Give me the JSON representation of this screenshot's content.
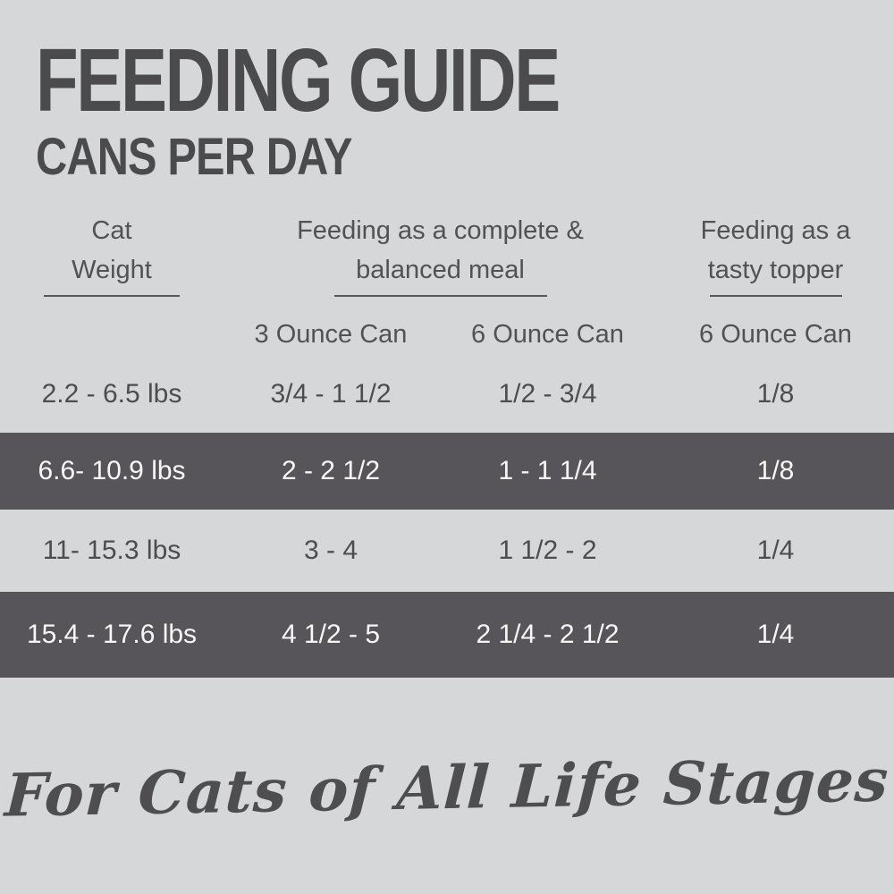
{
  "page": {
    "background_color": "#d6d7d8",
    "text_color": "#4c4c4e",
    "highlight_band_color": "#575559",
    "highlight_band_text_color": "#f7f7f6"
  },
  "header": {
    "title": "FEEDING GUIDE",
    "subtitle": "CANS PER DAY"
  },
  "table": {
    "column_groups": [
      {
        "line1": "Cat",
        "line2": "Weight"
      },
      {
        "line1": "Feeding as a complete &",
        "line2": "balanced meal"
      },
      {
        "line1": "Feeding as a",
        "line2": "tasty topper"
      }
    ],
    "sub_headers": [
      "3 Ounce Can",
      "6 Ounce Can",
      "6 Ounce Can"
    ],
    "rows": [
      {
        "weight": "2.2 - 6.5 lbs",
        "complete_3oz": "3/4 - 1 1/2",
        "complete_6oz": "1/2 - 3/4",
        "topper_6oz": "1/8",
        "highlighted": false
      },
      {
        "weight": "6.6- 10.9 lbs",
        "complete_3oz": "2 - 2 1/2",
        "complete_6oz": "1 - 1 1/4",
        "topper_6oz": "1/8",
        "highlighted": true
      },
      {
        "weight": "11- 15.3 lbs",
        "complete_3oz": "3 - 4",
        "complete_6oz": "1 1/2 - 2",
        "topper_6oz": "1/4",
        "highlighted": false
      },
      {
        "weight": "15.4 - 17.6 lbs",
        "complete_3oz": "4 1/2 - 5",
        "complete_6oz": "2 1/4 - 2 1/2",
        "topper_6oz": "1/4",
        "highlighted": true
      }
    ]
  },
  "footer": {
    "tagline": "For Cats of All Life Stages"
  },
  "chart_data": {
    "type": "table",
    "title": "FEEDING GUIDE",
    "subtitle": "CANS PER DAY",
    "columns": [
      "Cat Weight",
      "Feeding as a complete & balanced meal - 3 Ounce Can",
      "Feeding as a complete & balanced meal - 6 Ounce Can",
      "Feeding as a tasty topper - 6 Ounce Can"
    ],
    "rows": [
      [
        "2.2 - 6.5 lbs",
        "3/4 - 1 1/2",
        "1/2 - 3/4",
        "1/8"
      ],
      [
        "6.6- 10.9 lbs",
        "2 - 2 1/2",
        "1 - 1 1/4",
        "1/8"
      ],
      [
        "11- 15.3 lbs",
        "3 - 4",
        "1 1/2 - 2",
        "1/4"
      ],
      [
        "15.4 - 17.6 lbs",
        "4 1/2 - 5",
        "2 1/4 - 2 1/2",
        "1/4"
      ]
    ],
    "highlighted_row_indices": [
      1,
      3
    ],
    "footnote": "For Cats of All Life Stages"
  }
}
